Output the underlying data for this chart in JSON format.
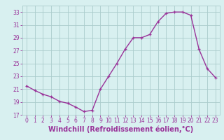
{
  "x": [
    0,
    1,
    2,
    3,
    4,
    5,
    6,
    7,
    8,
    9,
    10,
    11,
    12,
    13,
    14,
    15,
    16,
    17,
    18,
    19,
    20,
    21,
    22,
    23
  ],
  "y": [
    21.5,
    20.8,
    20.2,
    19.8,
    19.1,
    18.8,
    18.2,
    17.5,
    17.7,
    21.0,
    23.0,
    25.0,
    27.2,
    29.0,
    29.0,
    29.5,
    31.5,
    32.8,
    33.0,
    33.0,
    32.5,
    27.2,
    24.2,
    22.8
  ],
  "line_color": "#993399",
  "marker": "+",
  "marker_size": 3.5,
  "bg_color": "#d8f0f0",
  "grid_color": "#aacccc",
  "xlabel": "Windchill (Refroidissement éolien,°C)",
  "xlabel_color": "#993399",
  "tick_color": "#993399",
  "ylim": [
    17,
    34
  ],
  "xlim": [
    -0.5,
    23.5
  ],
  "yticks": [
    17,
    19,
    21,
    23,
    25,
    27,
    29,
    31,
    33
  ],
  "xticks": [
    0,
    1,
    2,
    3,
    4,
    5,
    6,
    7,
    8,
    9,
    10,
    11,
    12,
    13,
    14,
    15,
    16,
    17,
    18,
    19,
    20,
    21,
    22,
    23
  ],
  "tick_fontsize": 5.5,
  "xlabel_fontsize": 7.0,
  "line_width": 1.0
}
